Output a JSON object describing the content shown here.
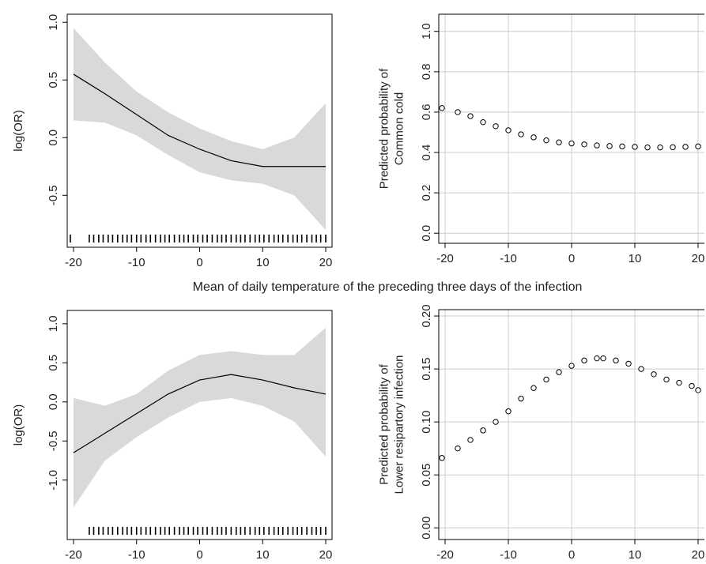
{
  "xlabel": "Mean of daily temperature of the preceding three days of the infection",
  "chart_data": [
    {
      "type": "line",
      "ylabel": [
        "log(OR)"
      ],
      "color": "#000000",
      "band_color": "#d9d9d9",
      "x": [
        -20,
        -15,
        -10,
        -5,
        0,
        5,
        10,
        15,
        20
      ],
      "values": [
        0.55,
        0.38,
        0.2,
        0.02,
        -0.1,
        -0.2,
        -0.25,
        -0.25,
        -0.25
      ],
      "lower": [
        0.15,
        0.13,
        0.02,
        -0.15,
        -0.3,
        -0.37,
        -0.4,
        -0.5,
        -0.8
      ],
      "upper": [
        0.95,
        0.65,
        0.4,
        0.22,
        0.08,
        -0.03,
        -0.1,
        0.0,
        0.3
      ],
      "rug": [
        -20.5,
        -17.5,
        -16.8,
        -16,
        -15.3,
        -14.5,
        -13.8,
        -13,
        -12.2,
        -11.5,
        -10.8,
        -10,
        -9.3,
        -8.5,
        -7.8,
        -7,
        -6.2,
        -5.5,
        -4.8,
        -4,
        -3.2,
        -2.5,
        -1.8,
        -1,
        -0.3,
        0.5,
        1.2,
        2,
        2.8,
        3.5,
        4.2,
        5,
        5.8,
        6.5,
        7.2,
        8,
        8.8,
        9.5,
        10.2,
        11,
        11.8,
        12.5,
        13.2,
        14,
        14.8,
        15.5,
        16.2,
        17,
        17.8,
        18.5,
        19.2,
        20
      ],
      "xlim": [
        -21,
        21
      ],
      "ylim": [
        -0.95,
        1.07
      ],
      "xticks": [
        -20,
        -10,
        0,
        10,
        20
      ],
      "yticks": [
        -0.5,
        {
          "value": 0,
          "label": "0.0"
        },
        0.5,
        {
          "value": 1,
          "label": "1.0"
        }
      ],
      "grid": false
    },
    {
      "type": "scatter",
      "ylabel": [
        "Predicted probability of",
        "Common cold"
      ],
      "color": "#000000",
      "x": [
        -20.5,
        -18,
        -16,
        -14,
        -12,
        -10,
        -8,
        -6,
        -4,
        -2,
        0,
        2,
        4,
        6,
        8,
        10,
        12,
        14,
        16,
        18,
        20
      ],
      "values": [
        0.62,
        0.6,
        0.58,
        0.55,
        0.53,
        0.51,
        0.49,
        0.475,
        0.46,
        0.45,
        0.445,
        0.44,
        0.435,
        0.432,
        0.43,
        0.428,
        0.425,
        0.425,
        0.426,
        0.428,
        0.43
      ],
      "xlim": [
        -21,
        21
      ],
      "ylim": [
        -0.05,
        1.085
      ],
      "xticks": [
        -20,
        -10,
        0,
        10,
        20
      ],
      "yticks": [
        {
          "value": 0,
          "label": "0.0"
        },
        0.2,
        0.4,
        0.6,
        0.8,
        {
          "value": 1,
          "label": "1.0"
        }
      ],
      "grid": true
    },
    {
      "type": "line",
      "ylabel": [
        "log(OR)"
      ],
      "color": "#000000",
      "band_color": "#d9d9d9",
      "x": [
        -20,
        -15,
        -10,
        -5,
        0,
        5,
        10,
        15,
        20
      ],
      "values": [
        -0.65,
        -0.4,
        -0.15,
        0.1,
        0.28,
        0.35,
        0.28,
        0.18,
        0.1
      ],
      "lower": [
        -1.35,
        -0.75,
        -0.45,
        -0.2,
        0.0,
        0.05,
        -0.05,
        -0.25,
        -0.7
      ],
      "upper": [
        0.05,
        -0.05,
        0.1,
        0.4,
        0.6,
        0.65,
        0.6,
        0.6,
        0.95
      ],
      "rug": [
        -17.5,
        -16.8,
        -16,
        -15.3,
        -14.5,
        -13.8,
        -13,
        -12.2,
        -11.5,
        -10.8,
        -10,
        -9.3,
        -8.5,
        -7.8,
        -7,
        -6.2,
        -5.5,
        -4.8,
        -4,
        -3.2,
        -2.5,
        -1.8,
        -1,
        -0.3,
        0.5,
        1.2,
        2,
        2.8,
        3.5,
        4.2,
        5,
        5.8,
        6.5,
        7.2,
        8,
        8.8,
        9.5,
        10.2,
        11,
        11.8,
        12.5,
        13.2,
        14,
        14.8,
        15.5,
        16.2,
        17,
        17.8,
        18.5,
        19.2,
        20
      ],
      "xlim": [
        -21,
        21
      ],
      "ylim": [
        -1.76,
        1.17
      ],
      "xticks": [
        -20,
        -10,
        0,
        10,
        20
      ],
      "yticks": [
        {
          "value": -1,
          "label": "-1.0"
        },
        -0.5,
        {
          "value": 0,
          "label": "0.0"
        },
        0.5,
        {
          "value": 1,
          "label": "1.0"
        }
      ],
      "grid": false
    },
    {
      "type": "scatter",
      "ylabel": [
        "Predicted probability of",
        "Lower resipartory infection"
      ],
      "color": "#000000",
      "x": [
        -20.5,
        -18,
        -16,
        -14,
        -12,
        -10,
        -8,
        -6,
        -4,
        -2,
        0,
        2,
        4,
        5,
        7,
        9,
        11,
        13,
        15,
        17,
        19,
        20
      ],
      "values": [
        0.066,
        0.075,
        0.083,
        0.092,
        0.1,
        0.11,
        0.122,
        0.132,
        0.14,
        0.147,
        0.153,
        0.158,
        0.16,
        0.16,
        0.158,
        0.155,
        0.15,
        0.145,
        0.14,
        0.137,
        0.134,
        0.13
      ],
      "xlim": [
        -21,
        21
      ],
      "ylim": [
        -0.011,
        0.206
      ],
      "xticks": [
        -20,
        -10,
        0,
        10,
        20
      ],
      "yticks": [
        {
          "value": 0,
          "label": "0.00"
        },
        0.05,
        {
          "value": 0.1,
          "label": "0.10"
        },
        0.15,
        {
          "value": 0.2,
          "label": "0.20"
        }
      ],
      "grid": true
    }
  ]
}
